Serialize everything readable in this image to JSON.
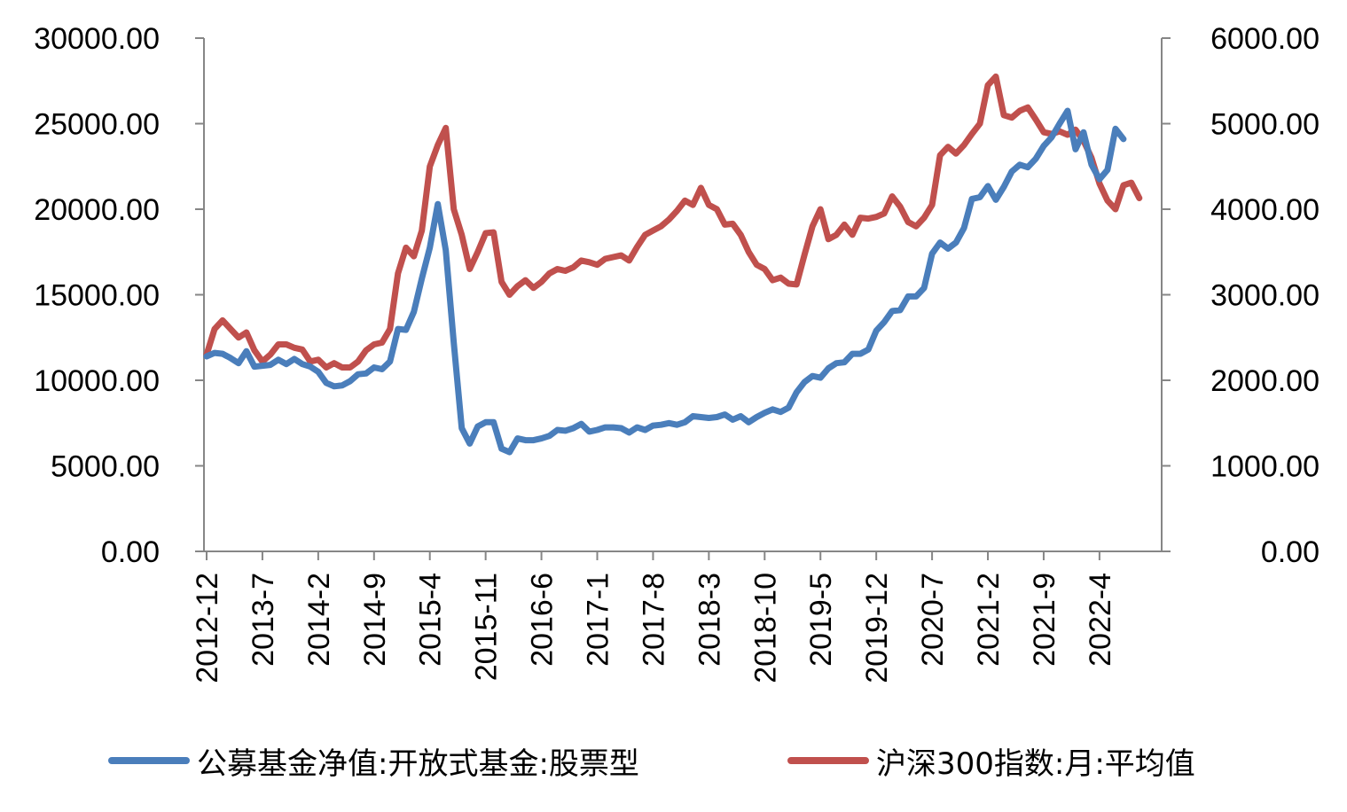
{
  "chart_data": {
    "type": "line",
    "colors": {
      "fund": "#4a7ebb",
      "index": "#c0504d",
      "axis": "#868686"
    },
    "y_left": {
      "range": [
        0,
        30000
      ],
      "ticks": [
        0,
        5000,
        10000,
        15000,
        20000,
        25000,
        30000
      ],
      "tick_labels": [
        "0.00",
        "5000.00",
        "10000.00",
        "15000.00",
        "20000.00",
        "25000.00",
        "30000.00"
      ]
    },
    "y_right": {
      "range": [
        0,
        6000
      ],
      "ticks": [
        0,
        1000,
        2000,
        3000,
        4000,
        5000,
        6000
      ],
      "tick_labels": [
        "0.00",
        "1000.00",
        "2000.00",
        "3000.00",
        "4000.00",
        "5000.00",
        "6000.00"
      ]
    },
    "x_labels": [
      "2012-12",
      "2013-7",
      "2014-2",
      "2014-9",
      "2015-4",
      "2015-11",
      "2016-6",
      "2017-1",
      "2017-8",
      "2018-3",
      "2018-10",
      "2019-5",
      "2019-12",
      "2020-7",
      "2021-2",
      "2021-9",
      "2022-4"
    ],
    "x_start": "2012-12",
    "legend_position": "bottom",
    "grid": false,
    "series": [
      {
        "name": "公募基金净值:开放式基金:股票型",
        "axis": "left",
        "values": [
          11400,
          11600,
          11550,
          11300,
          11000,
          11700,
          10800,
          10850,
          10900,
          11200,
          10950,
          11250,
          10950,
          10800,
          10500,
          9850,
          9650,
          9700,
          9950,
          10350,
          10400,
          10750,
          10650,
          11100,
          13000,
          12950,
          14000,
          15950,
          17750,
          20300,
          17600,
          12200,
          7200,
          6300,
          7300,
          7550,
          7550,
          6000,
          5800,
          6600,
          6500,
          6500,
          6600,
          6750,
          7100,
          7050,
          7200,
          7450,
          7000,
          7100,
          7250,
          7250,
          7200,
          6950,
          7250,
          7100,
          7350,
          7400,
          7500,
          7400,
          7550,
          7900,
          7850,
          7800,
          7850,
          8000,
          7700,
          7900,
          7550,
          7850,
          8100,
          8300,
          8150,
          8400,
          9300,
          9900,
          10250,
          10150,
          10700,
          11000,
          11050,
          11550,
          11550,
          11800,
          12900,
          13400,
          14050,
          14100,
          14900,
          14900,
          15400,
          17400,
          18050,
          17700,
          18050,
          18900,
          20600,
          20700,
          21350,
          20550,
          21300,
          22200,
          22600,
          22450,
          22950,
          23700,
          24200,
          25000,
          25750,
          23500,
          24500,
          22600,
          21750,
          22300,
          24700,
          24100
        ]
      },
      {
        "name": "沪深300指数:月:平均值",
        "axis": "right",
        "values": [
          2300,
          2600,
          2700,
          2600,
          2500,
          2560,
          2350,
          2220,
          2300,
          2420,
          2420,
          2380,
          2360,
          2220,
          2240,
          2150,
          2200,
          2150,
          2150,
          2220,
          2350,
          2420,
          2440,
          2600,
          3250,
          3550,
          3450,
          3750,
          4500,
          4750,
          4950,
          4000,
          3700,
          3300,
          3500,
          3720,
          3730,
          3150,
          3000,
          3100,
          3170,
          3080,
          3150,
          3250,
          3300,
          3280,
          3320,
          3400,
          3380,
          3350,
          3420,
          3440,
          3460,
          3400,
          3560,
          3700,
          3750,
          3800,
          3880,
          3980,
          4100,
          4050,
          4250,
          4050,
          4000,
          3820,
          3830,
          3700,
          3500,
          3350,
          3300,
          3170,
          3200,
          3130,
          3120,
          3470,
          3800,
          4000,
          3650,
          3700,
          3820,
          3700,
          3900,
          3890,
          3910,
          3950,
          4150,
          4030,
          3850,
          3800,
          3900,
          4050,
          4630,
          4730,
          4650,
          4750,
          4880,
          5000,
          5450,
          5550,
          5100,
          5070,
          5150,
          5190,
          5050,
          4900,
          4880,
          4910,
          4870,
          4930,
          4800,
          4600,
          4300,
          4100,
          4000,
          4280,
          4310,
          4130
        ]
      }
    ]
  }
}
